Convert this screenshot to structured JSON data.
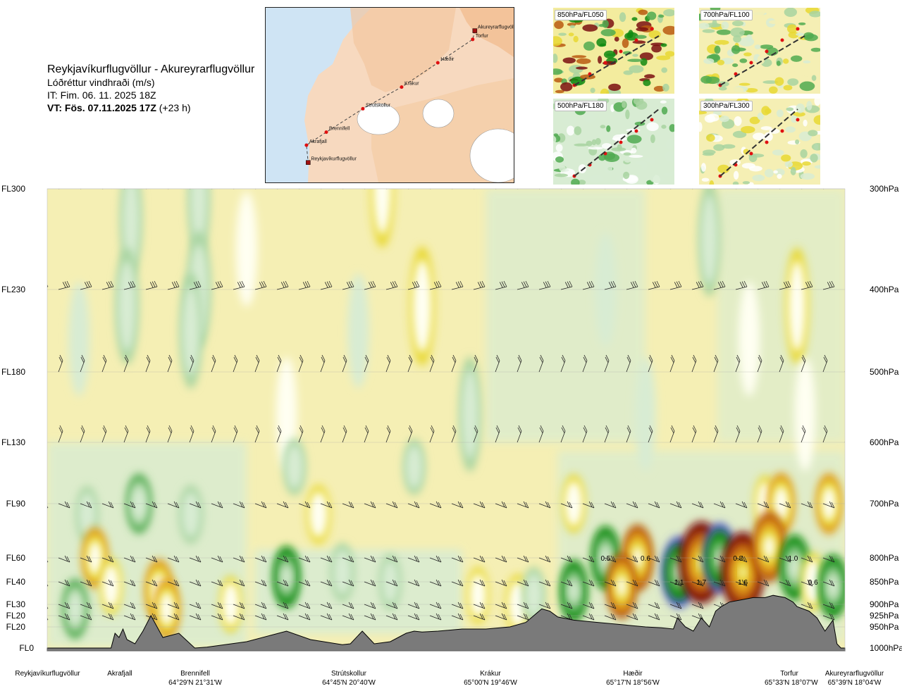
{
  "title": {
    "route": "Reykjavíkurflugvöllur - Akureyrarflugvöllur",
    "field": "Lóðréttur vindhraði (m/s)",
    "issue": "IT: Fim. 06. 11. 2025 18Z",
    "valid_prefix": "VT: Fös. 07.11.2025 17Z",
    "valid_suffix": "(+23 h)"
  },
  "map": {
    "places": [
      {
        "name": "Akureyrarflugvöllur",
        "lon": -18.07,
        "lat": 65.65
      },
      {
        "name": "Torfur",
        "lon": -18.12,
        "lat": 65.55
      },
      {
        "name": "Hæðir",
        "lon": -18.93,
        "lat": 65.28
      },
      {
        "name": "Krákur",
        "lon": -19.77,
        "lat": 65.0
      },
      {
        "name": "Strútskollur",
        "lon": -20.67,
        "lat": 64.75
      },
      {
        "name": "Brennifell",
        "lon": -21.52,
        "lat": 64.48
      },
      {
        "name": "Akrafjall",
        "lon": -21.98,
        "lat": 64.33
      },
      {
        "name": "Reykjavíkurflugvöllur",
        "lon": -21.94,
        "lat": 64.13
      }
    ]
  },
  "insets": [
    {
      "label": "850hPa/FL050",
      "bg": "#f3ec9e"
    },
    {
      "label": "700hPa/FL100",
      "bg": "#f5efb4"
    },
    {
      "label": "500hPa/FL180",
      "bg": "#d8ecd3"
    },
    {
      "label": "300hPa/FL300",
      "bg": "#f5efb4"
    }
  ],
  "axes": {
    "left_labels": [
      "FL300",
      "FL230",
      "FL180",
      "FL130",
      "FL90",
      "FL60",
      "FL40",
      "FL30",
      "FL20",
      "FL20",
      "FL0"
    ],
    "right_labels": [
      "300hPa",
      "400hPa",
      "500hPa",
      "600hPa",
      "700hPa",
      "800hPa",
      "850hPa",
      "900hPa",
      "925hPa",
      "950hPa",
      "1000hPa"
    ]
  },
  "bottom_labels": [
    {
      "name": "Reykjavíkurflugvöllur",
      "coord": ""
    },
    {
      "name": "Akrafjall",
      "coord": ""
    },
    {
      "name": "Brennifell",
      "coord": "64°29'N 21°31'W"
    },
    {
      "name": "Strútskollur",
      "coord": "64°45'N 20°40'W"
    },
    {
      "name": "Krákur",
      "coord": "65°00'N 19°46'W"
    },
    {
      "name": "Hæðir",
      "coord": "65°17'N 18°56'W"
    },
    {
      "name": "Torfur",
      "coord": "65°33'N 18°07'W"
    },
    {
      "name": "Akureyrarflugvöllur",
      "coord": "65°39'N 18°04'W"
    }
  ],
  "chart_data": {
    "type": "heatmap",
    "title": "Lóðréttur vindhraði (m/s)",
    "x_unit": "distance along route (fraction)",
    "y_unit": "pressure level (hPa)",
    "pressure_levels": [
      300,
      400,
      500,
      600,
      700,
      800,
      850,
      900,
      925,
      950,
      1000
    ],
    "flight_levels": [
      "FL300",
      "FL230",
      "FL180",
      "FL130",
      "FL90",
      "FL60",
      "FL40",
      "FL30",
      "FL20",
      "FL20",
      "FL0"
    ],
    "legend": "none",
    "grid": true,
    "colors": {
      "strong_up": "#7a1010",
      "up": "#b85a10",
      "mod_up": "#e09a1e",
      "weak_up": "#e8d832",
      "very_weak_up": "#f5efb4",
      "neutral": "#fffff2",
      "very_weak_down": "#d8ecd3",
      "weak_down": "#a8d4a0",
      "mod_down": "#50aa50",
      "down": "#118a11",
      "strong_down": "#5560c8",
      "terrain": "#7a7a7a"
    },
    "value_labels": [
      {
        "x": 0.7,
        "p": 800,
        "value": "0.5"
      },
      {
        "x": 0.75,
        "p": 800,
        "value": "0.6"
      },
      {
        "x": 0.866,
        "p": 800,
        "value": "0.8"
      },
      {
        "x": 0.935,
        "p": 800,
        "value": "1.0"
      },
      {
        "x": 0.792,
        "p": 850,
        "value": "1.1"
      },
      {
        "x": 0.82,
        "p": 850,
        "value": "1.7"
      },
      {
        "x": 0.872,
        "p": 850,
        "value": "1.6"
      },
      {
        "x": 0.96,
        "p": 850,
        "value": "0.6"
      }
    ],
    "cells": [
      {
        "x": 0.105,
        "p": 330,
        "v": -0.15
      },
      {
        "x": 0.19,
        "p": 310,
        "v": -0.15
      },
      {
        "x": 0.1,
        "p": 420,
        "v": -0.25
      },
      {
        "x": 0.19,
        "p": 400,
        "v": -0.3
      },
      {
        "x": 0.04,
        "p": 460,
        "v": -0.1
      },
      {
        "x": 0.18,
        "p": 450,
        "v": -0.2
      },
      {
        "x": 0.25,
        "p": 360,
        "v": 0.1
      },
      {
        "x": 0.42,
        "p": 300,
        "v": 0.3
      },
      {
        "x": 0.47,
        "p": 420,
        "v": 0.4
      },
      {
        "x": 0.39,
        "p": 450,
        "v": -0.12
      },
      {
        "x": 0.7,
        "p": 400,
        "v": -0.1
      },
      {
        "x": 0.83,
        "p": 350,
        "v": -0.15
      },
      {
        "x": 0.94,
        "p": 420,
        "v": 0.25
      },
      {
        "x": 0.88,
        "p": 460,
        "v": 0.1
      },
      {
        "x": 0.53,
        "p": 560,
        "v": -0.15
      },
      {
        "x": 0.3,
        "p": 560,
        "v": 0.08
      },
      {
        "x": 0.75,
        "p": 560,
        "v": -0.1
      },
      {
        "x": 0.95,
        "p": 560,
        "v": 0.08
      },
      {
        "x": 0.05,
        "p": 720,
        "v": -0.2
      },
      {
        "x": 0.115,
        "p": 700,
        "v": -0.4
      },
      {
        "x": 0.18,
        "p": 720,
        "v": -0.3
      },
      {
        "x": 0.34,
        "p": 720,
        "v": 0.35
      },
      {
        "x": 0.31,
        "p": 640,
        "v": -0.2
      },
      {
        "x": 0.46,
        "p": 640,
        "v": -0.15
      },
      {
        "x": 0.66,
        "p": 700,
        "v": 0.3
      },
      {
        "x": 0.9,
        "p": 700,
        "v": 0.2
      },
      {
        "x": 0.92,
        "p": 700,
        "v": 0.5
      },
      {
        "x": 0.98,
        "p": 700,
        "v": 0.45
      },
      {
        "x": 0.06,
        "p": 800,
        "v": 0.45
      },
      {
        "x": 0.14,
        "p": 870,
        "v": 0.6
      },
      {
        "x": 0.15,
        "p": 910,
        "v": 0.45
      },
      {
        "x": 0.035,
        "p": 910,
        "v": -0.4
      },
      {
        "x": 0.08,
        "p": 860,
        "v": 0.2
      },
      {
        "x": 0.23,
        "p": 900,
        "v": 0.2
      },
      {
        "x": 0.3,
        "p": 840,
        "v": -0.5
      },
      {
        "x": 0.37,
        "p": 830,
        "v": -0.3
      },
      {
        "x": 0.43,
        "p": 850,
        "v": -0.15
      },
      {
        "x": 0.54,
        "p": 880,
        "v": 0.2
      },
      {
        "x": 0.59,
        "p": 900,
        "v": 0.4
      },
      {
        "x": 0.61,
        "p": 880,
        "v": -0.2
      },
      {
        "x": 0.66,
        "p": 870,
        "v": -0.5
      },
      {
        "x": 0.7,
        "p": 800,
        "v": -0.6
      },
      {
        "x": 0.74,
        "p": 800,
        "v": 0.8
      },
      {
        "x": 0.72,
        "p": 860,
        "v": 0.7
      },
      {
        "x": 0.792,
        "p": 830,
        "v": -1.1
      },
      {
        "x": 0.82,
        "p": 810,
        "v": 1.7
      },
      {
        "x": 0.843,
        "p": 800,
        "v": -1.0
      },
      {
        "x": 0.872,
        "p": 830,
        "v": 1.6
      },
      {
        "x": 0.905,
        "p": 780,
        "v": 1.0
      },
      {
        "x": 0.937,
        "p": 820,
        "v": -0.7
      },
      {
        "x": 0.96,
        "p": 850,
        "v": 0.3
      },
      {
        "x": 0.985,
        "p": 860,
        "v": -0.6
      }
    ],
    "terrain_pressure": [
      [
        0.0,
        1000
      ],
      [
        0.02,
        1000
      ],
      [
        0.08,
        1000
      ],
      [
        0.085,
        965
      ],
      [
        0.09,
        975
      ],
      [
        0.095,
        955
      ],
      [
        0.1,
        980
      ],
      [
        0.11,
        990
      ],
      [
        0.12,
        960
      ],
      [
        0.13,
        925
      ],
      [
        0.145,
        975
      ],
      [
        0.165,
        965
      ],
      [
        0.185,
        1000
      ],
      [
        0.2,
        998
      ],
      [
        0.25,
        985
      ],
      [
        0.28,
        970
      ],
      [
        0.3,
        960
      ],
      [
        0.33,
        980
      ],
      [
        0.37,
        992
      ],
      [
        0.38,
        990
      ],
      [
        0.395,
        960
      ],
      [
        0.41,
        990
      ],
      [
        0.43,
        985
      ],
      [
        0.44,
        975
      ],
      [
        0.45,
        965
      ],
      [
        0.46,
        960
      ],
      [
        0.47,
        962
      ],
      [
        0.49,
        960
      ],
      [
        0.52,
        955
      ],
      [
        0.55,
        955
      ],
      [
        0.58,
        950
      ],
      [
        0.6,
        940
      ],
      [
        0.61,
        925
      ],
      [
        0.62,
        910
      ],
      [
        0.63,
        915
      ],
      [
        0.64,
        928
      ],
      [
        0.66,
        935
      ],
      [
        0.69,
        940
      ],
      [
        0.72,
        945
      ],
      [
        0.75,
        950
      ],
      [
        0.77,
        952
      ],
      [
        0.785,
        955
      ],
      [
        0.79,
        930
      ],
      [
        0.8,
        950
      ],
      [
        0.805,
        955
      ],
      [
        0.81,
        960
      ],
      [
        0.82,
        930
      ],
      [
        0.83,
        950
      ],
      [
        0.838,
        915
      ],
      [
        0.845,
        905
      ],
      [
        0.855,
        895
      ],
      [
        0.87,
        890
      ],
      [
        0.885,
        885
      ],
      [
        0.9,
        885
      ],
      [
        0.91,
        880
      ],
      [
        0.925,
        885
      ],
      [
        0.935,
        895
      ],
      [
        0.94,
        905
      ],
      [
        0.955,
        915
      ],
      [
        0.965,
        930
      ],
      [
        0.975,
        960
      ],
      [
        0.985,
        935
      ],
      [
        0.99,
        990
      ],
      [
        0.995,
        1000
      ],
      [
        1.0,
        1000
      ]
    ]
  }
}
